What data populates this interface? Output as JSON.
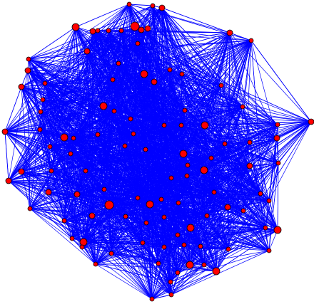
{
  "diagram": {
    "type": "network-graph",
    "layout": "force-directed",
    "node_style": {
      "fill": "#ff0000",
      "stroke": "#000000"
    },
    "edge_style": {
      "stroke": "#0000ff"
    },
    "background": "#ffffff"
  }
}
